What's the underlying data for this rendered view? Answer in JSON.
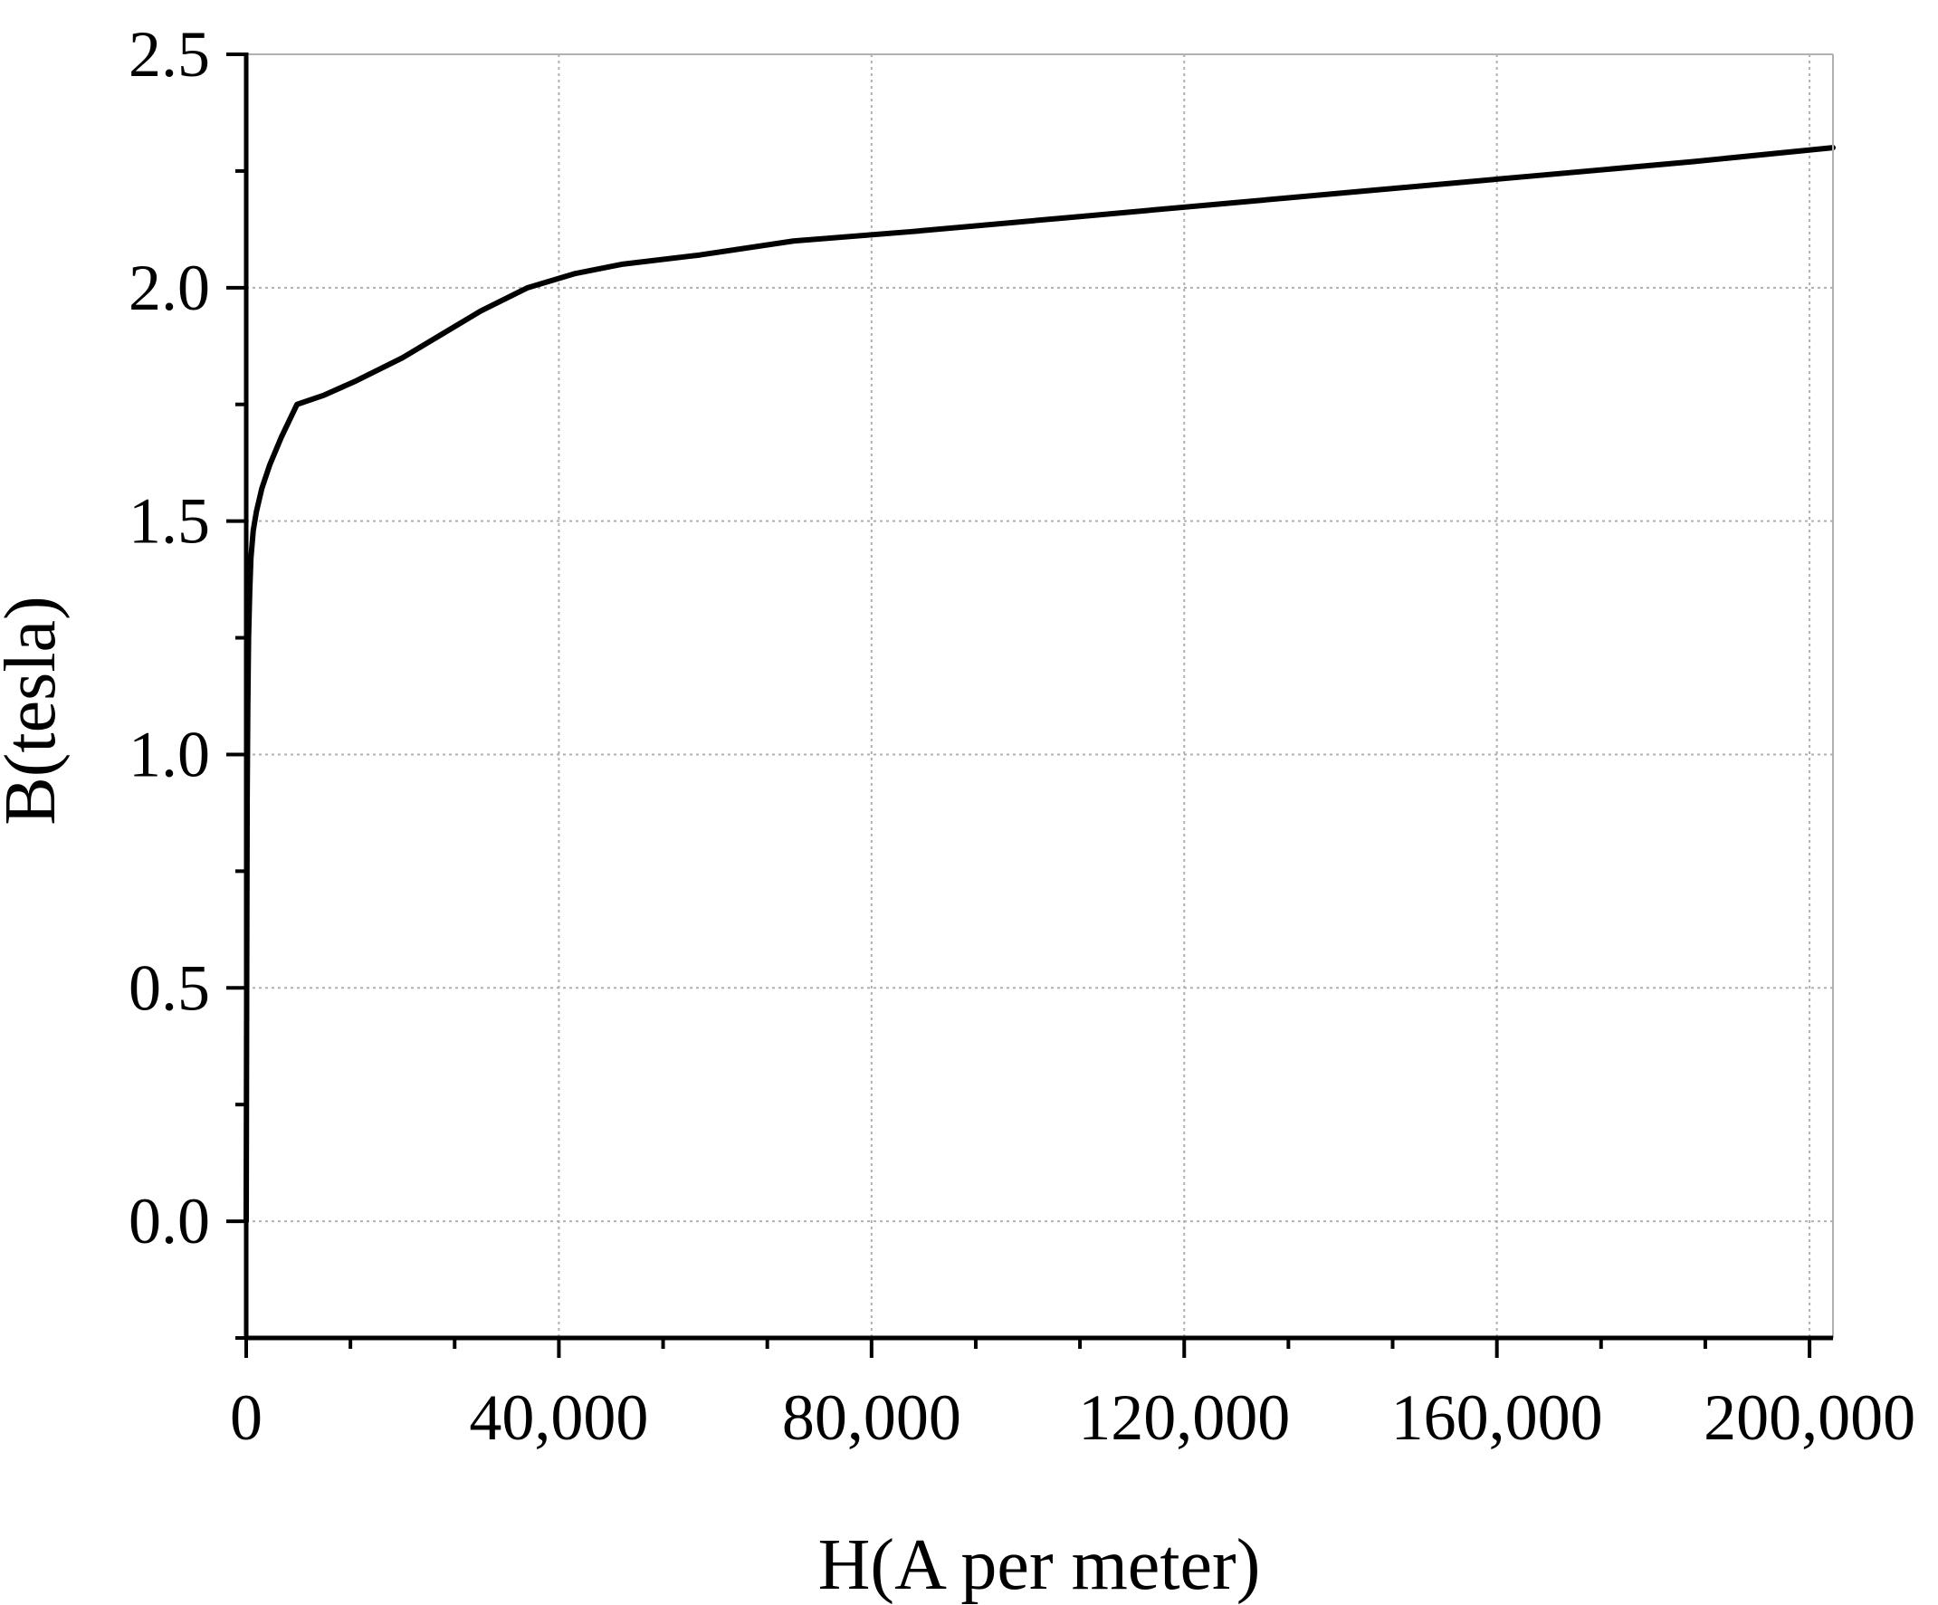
{
  "chart_data": {
    "type": "line",
    "title": "",
    "xlabel": "H(A  per  meter)",
    "ylabel": "B(tesla)",
    "xlim": [
      0,
      203000
    ],
    "ylim": [
      -0.25,
      2.5
    ],
    "xticks": [
      0,
      40000,
      80000,
      120000,
      160000,
      200000
    ],
    "xtick_labels": [
      "0",
      "40,000",
      "80,000",
      "120,000",
      "160,000",
      "200,000"
    ],
    "yticks": [
      0.0,
      0.5,
      1.0,
      1.5,
      2.0,
      2.5
    ],
    "ytick_labels": [
      "0.0",
      "0.5",
      "1.0",
      "1.5",
      "2.0",
      "2.5"
    ],
    "x_minor_step": 13333,
    "y_minor_step": 0.25,
    "grid": true,
    "line_color": "#000000",
    "grid_color": "#b0b0b0",
    "series": [
      {
        "x": [
          0,
          60,
          120,
          200,
          300,
          450,
          600,
          900,
          1300,
          2000,
          3000,
          4500,
          6500,
          10000,
          14000,
          20000,
          25000,
          30000,
          36000,
          42000,
          48000,
          58000,
          70000,
          85000,
          105000,
          125000,
          145000,
          165000,
          185000,
          203000
        ],
        "y": [
          0.0,
          0.5,
          0.9,
          1.1,
          1.25,
          1.35,
          1.42,
          1.48,
          1.52,
          1.57,
          1.62,
          1.68,
          1.75,
          1.77,
          1.8,
          1.85,
          1.9,
          1.95,
          2.0,
          2.03,
          2.05,
          2.07,
          2.1,
          2.12,
          2.15,
          2.18,
          2.21,
          2.24,
          2.27,
          2.3
        ]
      }
    ]
  }
}
